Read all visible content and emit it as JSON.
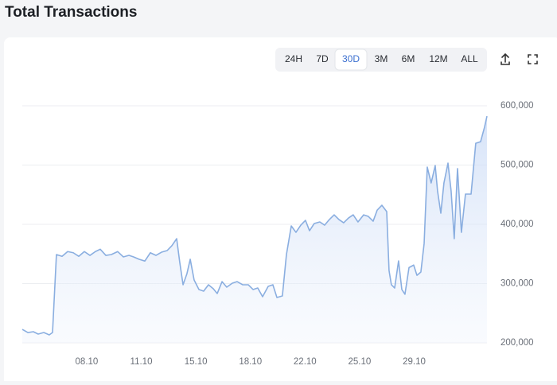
{
  "chart_data": {
    "type": "area",
    "title": "Total Transactions",
    "x": [
      3.87,
      4.23,
      4.58,
      4.89,
      5.25,
      5.6,
      5.81,
      6.06,
      6.42,
      6.78,
      7.14,
      7.49,
      7.85,
      8.21,
      8.56,
      8.87,
      9.23,
      9.58,
      9.99,
      10.35,
      10.71,
      11.01,
      11.37,
      11.73,
      12.08,
      12.44,
      12.8,
      13.16,
      13.46,
      13.77,
      13.97,
      14.18,
      14.43,
      14.64,
      14.89,
      15.2,
      15.5,
      15.81,
      16.12,
      16.37,
      16.68,
      16.98,
      17.34,
      17.65,
      18,
      18.36,
      18.67,
      18.97,
      19.28,
      19.64,
      19.94,
      20.2,
      20.55,
      20.81,
      21.12,
      21.42,
      21.73,
      22.03,
      22.29,
      22.59,
      22.95,
      23.26,
      23.56,
      23.87,
      24.18,
      24.48,
      24.79,
      25.09,
      25.4,
      25.76,
      26.06,
      26.37,
      26.63,
      26.93,
      27.24,
      27.39,
      27.54,
      27.75,
      28,
      28.21,
      28.41,
      28.67,
      28.97,
      29.18,
      29.43,
      29.64,
      29.84,
      30.09,
      30.35,
      30.5,
      30.71,
      30.91,
      31.17,
      31.37,
      31.57,
      31.78,
      32.03,
      32.29,
      32.65,
      32.95,
      33.26,
      33.51,
      33.67
    ],
    "values": [
      222800,
      217400,
      218800,
      214800,
      217400,
      213400,
      217400,
      349000,
      346000,
      354000,
      352000,
      346000,
      354000,
      347600,
      354000,
      358000,
      347600,
      349000,
      354000,
      345000,
      347600,
      345000,
      341000,
      338000,
      352000,
      347600,
      353000,
      355700,
      363800,
      375800,
      335600,
      298000,
      316800,
      341000,
      306000,
      290000,
      287200,
      298000,
      291300,
      283200,
      303300,
      294000,
      300700,
      303300,
      298000,
      298000,
      290000,
      292600,
      277800,
      295300,
      298000,
      276500,
      279200,
      349000,
      397300,
      386500,
      398600,
      406700,
      389200,
      401300,
      404000,
      398600,
      408000,
      416000,
      408000,
      402600,
      410700,
      416000,
      404000,
      416000,
      413400,
      405300,
      424000,
      432200,
      421500,
      322000,
      298000,
      292600,
      338200,
      290000,
      282000,
      327000,
      331200,
      314000,
      319400,
      367700,
      496600,
      469800,
      499300,
      456400,
      418800,
      469800,
      503300,
      456400,
      375800,
      494000,
      386500,
      451000,
      451000,
      536800,
      539500,
      563700,
      582500
    ],
    "color": "#8aaee0",
    "xlim": [
      3.87,
      33.67
    ],
    "xticks": [
      {
        "value": 8,
        "label": "08.10"
      },
      {
        "value": 11.5,
        "label": "11.10"
      },
      {
        "value": 15,
        "label": "15.10"
      },
      {
        "value": 18.5,
        "label": "18.10"
      },
      {
        "value": 22,
        "label": "22.10"
      },
      {
        "value": 25.5,
        "label": "25.10"
      },
      {
        "value": 29,
        "label": "29.10"
      }
    ],
    "ylim": [
      200000,
      600000
    ],
    "yticks": [
      {
        "value": 200000,
        "label": "200,000"
      },
      {
        "value": 300000,
        "label": "300,000"
      },
      {
        "value": 400000,
        "label": "400,000"
      },
      {
        "value": 500000,
        "label": "500,000"
      },
      {
        "value": 600000,
        "label": "600,000"
      }
    ],
    "grid": true
  },
  "controls": {
    "ranges": [
      "24H",
      "7D",
      "30D",
      "3M",
      "6M",
      "12M",
      "ALL"
    ],
    "selected": 2
  }
}
